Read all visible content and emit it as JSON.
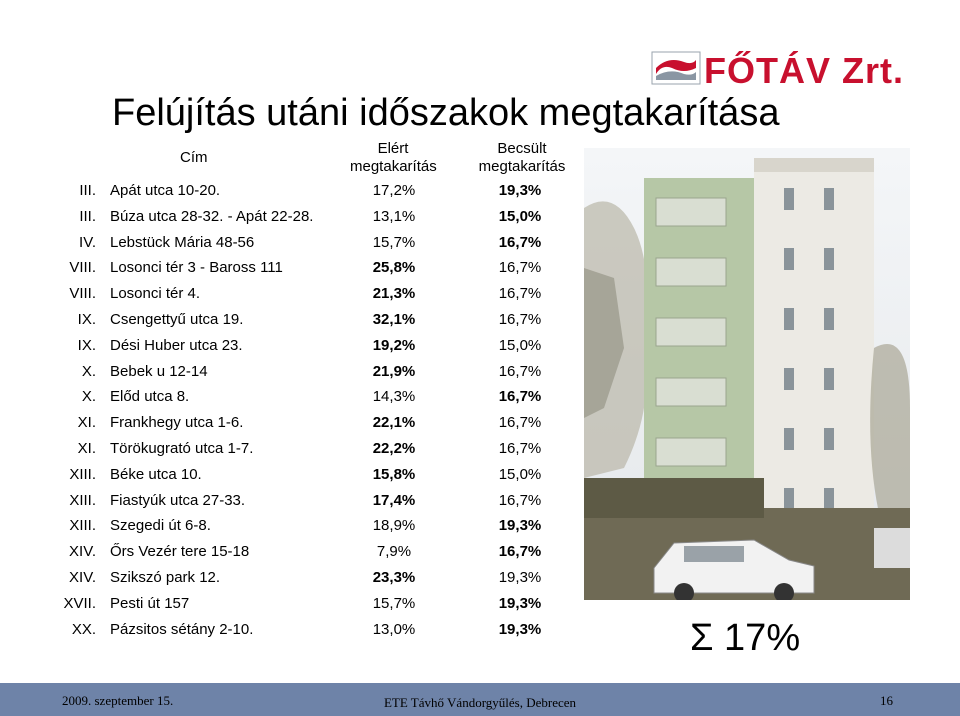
{
  "logo": {
    "text": "FŐTÁV Zrt.",
    "brand_color": "#c8102e"
  },
  "title": "Felújítás utáni időszakok megtakarítása",
  "table": {
    "headers": {
      "address": "Cím",
      "achieved": "Elért megtakarítás",
      "estimated": "Becsült megtakarítás"
    },
    "rows": [
      {
        "district": "III.",
        "address": "Apát utca 10-20.",
        "achieved": "17,2%",
        "estimated": "19,3%",
        "ach_bold": false,
        "est_bold": true
      },
      {
        "district": "III.",
        "address": "Búza utca 28-32. - Apát 22-28.",
        "achieved": "13,1%",
        "estimated": "15,0%",
        "ach_bold": false,
        "est_bold": true
      },
      {
        "district": "IV.",
        "address": "Lebstück Mária 48-56",
        "achieved": "15,7%",
        "estimated": "16,7%",
        "ach_bold": false,
        "est_bold": true
      },
      {
        "district": "VIII.",
        "address": "Losonci tér 3 - Baross 111",
        "achieved": "25,8%",
        "estimated": "16,7%",
        "ach_bold": true,
        "est_bold": false
      },
      {
        "district": "VIII.",
        "address": "Losonci tér 4.",
        "achieved": "21,3%",
        "estimated": "16,7%",
        "ach_bold": true,
        "est_bold": false
      },
      {
        "district": "IX.",
        "address": "Csengettyű utca 19.",
        "achieved": "32,1%",
        "estimated": "16,7%",
        "ach_bold": true,
        "est_bold": false
      },
      {
        "district": "IX.",
        "address": "Dési Huber utca 23.",
        "achieved": "19,2%",
        "estimated": "15,0%",
        "ach_bold": true,
        "est_bold": false
      },
      {
        "district": "X.",
        "address": "Bebek u 12-14",
        "achieved": "21,9%",
        "estimated": "16,7%",
        "ach_bold": true,
        "est_bold": false
      },
      {
        "district": "X.",
        "address": "Előd utca 8.",
        "achieved": "14,3%",
        "estimated": "16,7%",
        "ach_bold": false,
        "est_bold": true
      },
      {
        "district": "XI.",
        "address": "Frankhegy utca 1-6.",
        "achieved": "22,1%",
        "estimated": "16,7%",
        "ach_bold": true,
        "est_bold": false
      },
      {
        "district": "XI.",
        "address": "Törökugrató utca 1-7.",
        "achieved": "22,2%",
        "estimated": "16,7%",
        "ach_bold": true,
        "est_bold": false
      },
      {
        "district": "XIII.",
        "address": "Béke utca 10.",
        "achieved": "15,8%",
        "estimated": "15,0%",
        "ach_bold": true,
        "est_bold": false
      },
      {
        "district": "XIII.",
        "address": "Fiastyúk utca 27-33.",
        "achieved": "17,4%",
        "estimated": "16,7%",
        "ach_bold": true,
        "est_bold": false
      },
      {
        "district": "XIII.",
        "address": "Szegedi út 6-8.",
        "achieved": "18,9%",
        "estimated": "19,3%",
        "ach_bold": false,
        "est_bold": true
      },
      {
        "district": "XIV.",
        "address": "Őrs Vezér tere 15-18",
        "achieved": "7,9%",
        "estimated": "16,7%",
        "ach_bold": false,
        "est_bold": true
      },
      {
        "district": "XIV.",
        "address": "Szikszó park 12.",
        "achieved": "23,3%",
        "estimated": "19,3%",
        "ach_bold": true,
        "est_bold": false
      },
      {
        "district": "XVII.",
        "address": "Pesti út 157",
        "achieved": "15,7%",
        "estimated": "19,3%",
        "ach_bold": false,
        "est_bold": true
      },
      {
        "district": "XX.",
        "address": "Pázsitos sétány 2-10.",
        "achieved": "13,0%",
        "estimated": "19,3%",
        "ach_bold": false,
        "est_bold": true
      }
    ]
  },
  "summary": "Σ 17%",
  "footer": {
    "date": "2009. szeptember 15.",
    "event": "ETE Távhő Vándorgyűlés, Debrecen",
    "page": "16",
    "bar_color": "#6e83a8"
  }
}
